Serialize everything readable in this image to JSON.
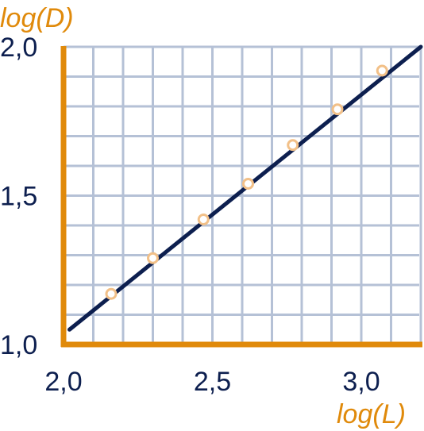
{
  "chart_data": {
    "type": "scatter",
    "xlabel": "log(L)",
    "ylabel": "log(D)",
    "xlim": [
      2.0,
      3.2
    ],
    "ylim": [
      1.0,
      2.0
    ],
    "x_ticks": [
      {
        "value": 2.0,
        "label": "2,0"
      },
      {
        "value": 2.5,
        "label": "2,5"
      },
      {
        "value": 3.0,
        "label": "3,0"
      }
    ],
    "y_ticks": [
      {
        "value": 1.0,
        "label": "1,0"
      },
      {
        "value": 1.5,
        "label": "1,5"
      },
      {
        "value": 2.0,
        "label": "2,0"
      }
    ],
    "grid": true,
    "grid_step": 0.1,
    "series": [
      {
        "points": [
          {
            "x": 2.16,
            "y": 1.17
          },
          {
            "x": 2.3,
            "y": 1.29
          },
          {
            "x": 2.47,
            "y": 1.42
          },
          {
            "x": 2.62,
            "y": 1.54
          },
          {
            "x": 2.77,
            "y": 1.67
          },
          {
            "x": 2.92,
            "y": 1.79
          },
          {
            "x": 3.07,
            "y": 1.92
          }
        ]
      }
    ],
    "fit_line": {
      "x": [
        2.02,
        3.2
      ],
      "y": [
        1.05,
        2.0
      ]
    },
    "colors": {
      "axis": "#e08a0b",
      "grid": "#b5c1d6",
      "line": "#0d1f4f",
      "marker": "#f2c088",
      "tick_label": "#0d1f4f",
      "axis_title": "#e08a0b"
    }
  }
}
